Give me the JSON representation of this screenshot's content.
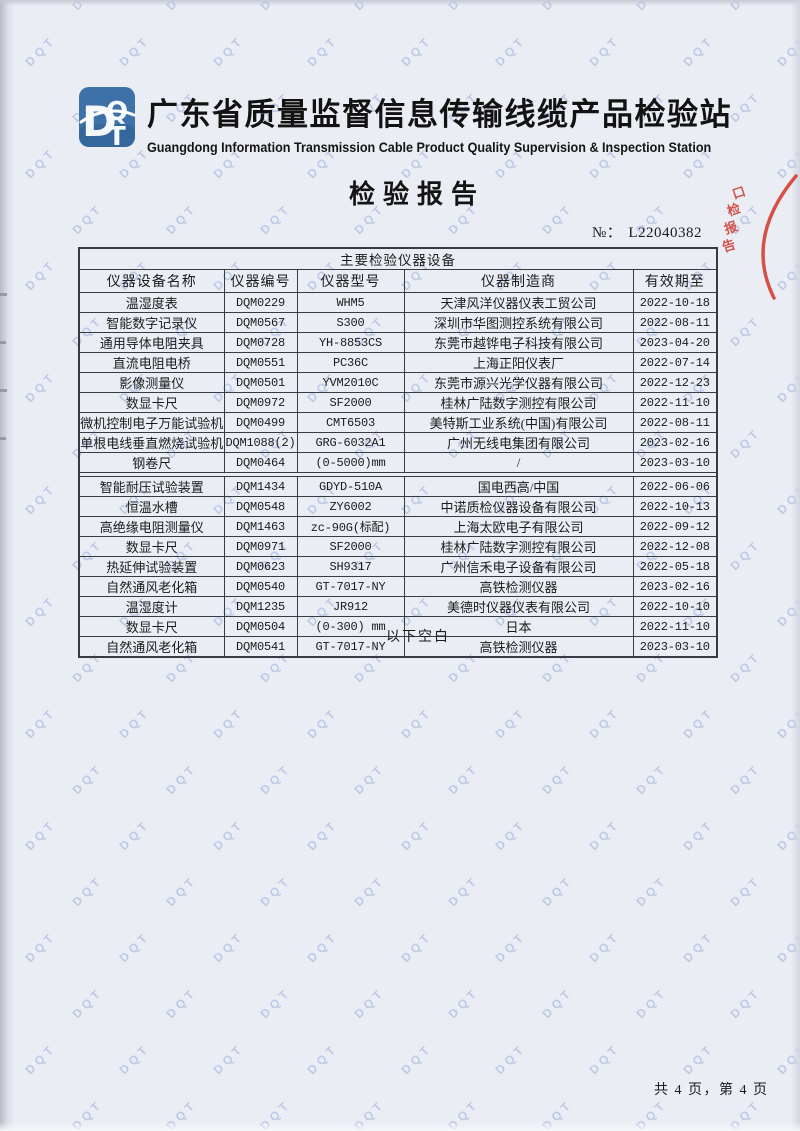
{
  "header": {
    "logo_text": "DQT",
    "station_name_cn": "广东省质量监督信息传输线缆产品检验站",
    "station_name_en": "Guangdong Information Transmission Cable Product Quality Supervision & Inspection Station",
    "report_title": "检验报告",
    "report_no_label": "№：",
    "report_no": "L22040382"
  },
  "stamp": {
    "visible_text": "口检报告",
    "color": "#cf3a31"
  },
  "watermark": {
    "text": "DQT"
  },
  "table": {
    "title": "主要检验仪器设备",
    "headers": [
      "仪器设备名称",
      "仪器编号",
      "仪器型号",
      "仪器制造商",
      "有效期至"
    ],
    "rows": [
      [
        "温湿度表",
        "DQM0229",
        "WHM5",
        "天津风洋仪器仪表工贸公司",
        "2022-10-18"
      ],
      [
        "智能数字记录仪",
        "DQM0567",
        "S300",
        "深圳市华图测控系统有限公司",
        "2022-08-11"
      ],
      [
        "通用导体电阻夹具",
        "DQM0728",
        "YH-8853CS",
        "东莞市越铧电子科技有限公司",
        "2023-04-20"
      ],
      [
        "直流电阻电桥",
        "DQM0551",
        "PC36C",
        "上海正阳仪表厂",
        "2022-07-14"
      ],
      [
        "影像测量仪",
        "DQM0501",
        "YVM2010C",
        "东莞市源兴光学仪器有限公司",
        "2022-12-23"
      ],
      [
        "数显卡尺",
        "DQM0972",
        "SF2000",
        "桂林广陆数字测控有限公司",
        "2022-11-10"
      ],
      [
        "微机控制电子万能试验机",
        "DQM0499",
        "CMT6503",
        "美特斯工业系统(中国)有限公司",
        "2022-08-11"
      ],
      [
        "单根电线垂直燃烧试验机",
        "DQM1088(2)",
        "GRG-6032A1",
        "广州无线电集团有限公司",
        "2023-02-16"
      ],
      [
        "钢卷尺",
        "DQM0464",
        "(0-5000)mm",
        "/",
        "2023-03-10"
      ],
      [
        "智能耐压试验装置",
        "DQM1434",
        "GDYD-510A",
        "国电西高/中国",
        "2022-06-06"
      ],
      [
        "恒温水槽",
        "DQM0548",
        "ZY6002",
        "中诺质检仪器设备有限公司",
        "2022-10-13"
      ],
      [
        "高绝缘电阻测量仪",
        "DQM1463",
        "zc-90G(标配)",
        "上海太欧电子有限公司",
        "2022-09-12"
      ],
      [
        "数显卡尺",
        "DQM0971",
        "SF2000",
        "桂林广陆数字测控有限公司",
        "2022-12-08"
      ],
      [
        "热延伸试验装置",
        "DQM0623",
        "SH9317",
        "广州信禾电子设备有限公司",
        "2022-05-18"
      ],
      [
        "自然通风老化箱",
        "DQM0540",
        "GT-7017-NY",
        "高铁检测仪器",
        "2023-02-16"
      ],
      [
        "温湿度计",
        "DQM1235",
        "JR912",
        "美德时仪器仪表有限公司",
        "2022-10-10"
      ],
      [
        "数显卡尺",
        "DQM0504",
        "(0-300) mm",
        "日本",
        "2022-11-10"
      ],
      [
        "自然通风老化箱",
        "DQM0541",
        "GT-7017-NY",
        "高铁检测仪器",
        "2023-03-10"
      ]
    ],
    "below_note": "以下空白"
  },
  "footer": {
    "page_info": "共 4 页，第 4 页"
  }
}
